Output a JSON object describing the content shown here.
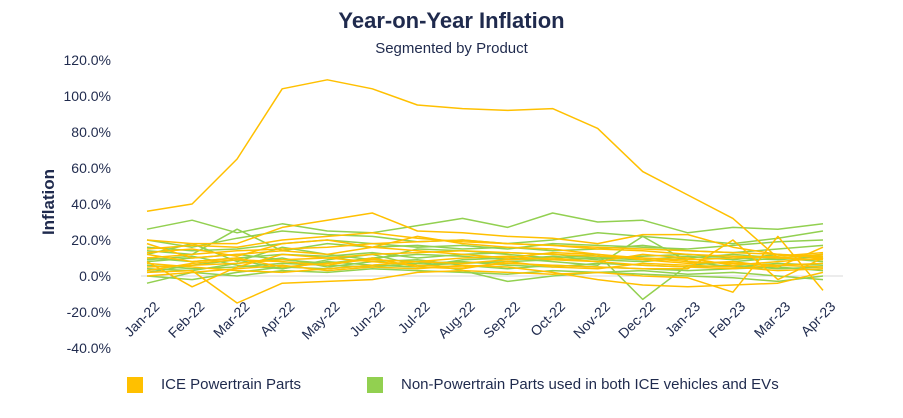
{
  "chart_data": {
    "type": "line",
    "title": "Year-on-Year Inflation",
    "subtitle": "Segmented by Product",
    "ylabel": "Inflation",
    "xlabel": "",
    "ylim": [
      -0.4,
      1.2
    ],
    "y_ticks": [
      "-40.0%",
      "-20.0%",
      "0.0%",
      "20.0%",
      "40.0%",
      "60.0%",
      "80.0%",
      "100.0%",
      "120.0%"
    ],
    "y_tick_values": [
      -0.4,
      -0.2,
      0,
      0.2,
      0.4,
      0.6,
      0.8,
      1.0,
      1.2
    ],
    "categories": [
      "Jan-22",
      "Feb-22",
      "Mar-22",
      "Apr-22",
      "May-22",
      "Jun-22",
      "Jul-22",
      "Aug-22",
      "Sep-22",
      "Oct-22",
      "Nov-22",
      "Dec-22",
      "Jan-23",
      "Feb-23",
      "Mar-23",
      "Apr-23"
    ],
    "grid": false,
    "legend_position": "bottom",
    "groups": [
      {
        "name": "ICE Powertrain Parts",
        "color": "#FFC000"
      },
      {
        "name": "Non-Powertrain Parts used in both ICE vehicles and EVs",
        "color": "#92D050"
      }
    ],
    "series": [
      {
        "group": 0,
        "values": [
          0.36,
          0.4,
          0.65,
          1.04,
          1.09,
          1.04,
          0.95,
          0.93,
          0.92,
          0.93,
          0.82,
          0.58,
          0.45,
          0.32,
          0.1,
          0.12
        ]
      },
      {
        "group": 0,
        "values": [
          0.2,
          0.18,
          0.18,
          0.27,
          0.31,
          0.35,
          0.25,
          0.24,
          0.22,
          0.21,
          0.18,
          0.23,
          0.23,
          0.16,
          0.12,
          0.1
        ]
      },
      {
        "group": 0,
        "values": [
          0.08,
          -0.06,
          0.05,
          0.12,
          0.1,
          0.08,
          0.06,
          0.05,
          0.07,
          0.06,
          0.05,
          0.04,
          0.04,
          0.2,
          -0.02,
          0.1
        ]
      },
      {
        "group": 0,
        "values": [
          0.02,
          0.03,
          -0.15,
          -0.04,
          -0.03,
          -0.02,
          0.02,
          0.03,
          0.02,
          0.01,
          0.02,
          0.0,
          -0.01,
          -0.09,
          0.22,
          -0.08
        ]
      },
      {
        "group": 0,
        "values": [
          0.15,
          0.17,
          0.16,
          0.2,
          0.22,
          0.24,
          0.21,
          0.19,
          0.18,
          0.17,
          0.16,
          0.15,
          0.14,
          0.13,
          0.12,
          0.11
        ]
      },
      {
        "group": 0,
        "values": [
          0.1,
          0.12,
          0.14,
          0.15,
          0.16,
          0.18,
          0.19,
          0.2,
          0.18,
          0.17,
          0.15,
          0.14,
          0.12,
          0.11,
          0.1,
          0.09
        ]
      },
      {
        "group": 0,
        "values": [
          0.05,
          0.06,
          0.07,
          0.09,
          0.1,
          0.12,
          0.13,
          0.14,
          0.13,
          0.12,
          0.11,
          0.1,
          0.08,
          0.07,
          0.06,
          0.05
        ]
      },
      {
        "group": 0,
        "values": [
          0.12,
          0.08,
          0.1,
          0.05,
          0.07,
          0.09,
          0.08,
          0.1,
          0.11,
          0.09,
          0.08,
          0.12,
          0.1,
          0.06,
          0.08,
          0.1
        ]
      },
      {
        "group": 0,
        "values": [
          0.18,
          0.1,
          0.12,
          0.14,
          0.12,
          0.16,
          0.14,
          0.12,
          0.1,
          0.13,
          0.12,
          0.09,
          0.07,
          0.08,
          0.05,
          0.16
        ]
      },
      {
        "group": 0,
        "values": [
          0.0,
          0.02,
          0.04,
          0.06,
          0.03,
          0.05,
          0.04,
          0.06,
          0.05,
          0.02,
          -0.02,
          -0.05,
          -0.06,
          -0.05,
          -0.04,
          0.02
        ]
      },
      {
        "group": 0,
        "values": [
          0.07,
          0.05,
          0.03,
          0.02,
          0.04,
          0.06,
          0.08,
          0.07,
          0.09,
          0.1,
          0.08,
          0.06,
          0.05,
          0.04,
          0.06,
          0.07
        ]
      },
      {
        "group": 0,
        "values": [
          0.13,
          0.15,
          0.11,
          0.18,
          0.2,
          0.16,
          0.22,
          0.18,
          0.16,
          0.15,
          0.12,
          0.1,
          0.09,
          0.1,
          0.11,
          0.13
        ]
      },
      {
        "group": 0,
        "values": [
          0.03,
          0.07,
          0.09,
          0.08,
          0.06,
          0.1,
          0.05,
          0.04,
          0.08,
          0.05,
          0.04,
          0.07,
          0.06,
          0.05,
          0.03,
          0.04
        ]
      },
      {
        "group": 1,
        "values": [
          0.26,
          0.31,
          0.24,
          0.29,
          0.25,
          0.24,
          0.28,
          0.32,
          0.27,
          0.35,
          0.3,
          0.31,
          0.24,
          0.27,
          0.26,
          0.29
        ]
      },
      {
        "group": 1,
        "values": [
          0.2,
          0.16,
          0.21,
          0.25,
          0.23,
          0.22,
          0.19,
          0.2,
          0.18,
          0.2,
          0.24,
          0.22,
          0.2,
          0.18,
          0.21,
          0.25
        ]
      },
      {
        "group": 1,
        "values": [
          0.14,
          0.12,
          0.26,
          0.14,
          0.18,
          0.16,
          0.17,
          0.15,
          0.16,
          0.14,
          0.15,
          0.17,
          0.14,
          0.13,
          0.15,
          0.17
        ]
      },
      {
        "group": 1,
        "values": [
          0.1,
          0.08,
          0.1,
          0.12,
          0.11,
          0.13,
          0.1,
          0.12,
          0.13,
          0.12,
          0.1,
          0.11,
          0.12,
          0.1,
          0.09,
          0.11
        ]
      },
      {
        "group": 1,
        "values": [
          0.06,
          0.04,
          0.05,
          0.07,
          0.06,
          0.05,
          0.07,
          0.08,
          0.06,
          0.05,
          0.07,
          0.06,
          0.05,
          0.06,
          0.04,
          0.05
        ]
      },
      {
        "group": 1,
        "values": [
          -0.04,
          0.02,
          0.0,
          0.03,
          0.02,
          0.04,
          0.03,
          0.02,
          0.01,
          0.03,
          0.02,
          0.01,
          0.0,
          -0.01,
          -0.03,
          0.0
        ]
      },
      {
        "group": 1,
        "values": [
          0.12,
          0.18,
          0.08,
          0.16,
          0.12,
          0.09,
          0.15,
          0.14,
          0.12,
          0.1,
          0.12,
          -0.13,
          0.06,
          0.08,
          0.1,
          0.12
        ]
      },
      {
        "group": 1,
        "values": [
          0.02,
          0.06,
          0.09,
          0.04,
          0.08,
          0.06,
          0.05,
          0.09,
          0.1,
          0.08,
          0.06,
          0.22,
          0.08,
          0.05,
          0.07,
          0.06
        ]
      },
      {
        "group": 1,
        "values": [
          0.08,
          0.1,
          0.12,
          0.09,
          0.07,
          0.1,
          0.12,
          0.11,
          0.09,
          0.11,
          0.09,
          0.08,
          0.1,
          0.12,
          0.1,
          0.08
        ]
      },
      {
        "group": 1,
        "values": [
          0.04,
          0.03,
          0.07,
          0.1,
          0.05,
          0.08,
          0.09,
          0.06,
          0.04,
          0.06,
          0.05,
          0.04,
          0.03,
          0.04,
          0.05,
          0.03
        ]
      },
      {
        "group": 1,
        "values": [
          0.16,
          0.14,
          0.15,
          0.18,
          0.2,
          0.18,
          0.16,
          0.17,
          0.15,
          0.18,
          0.17,
          0.16,
          0.15,
          0.17,
          0.19,
          0.2
        ]
      },
      {
        "group": 1,
        "values": [
          0.0,
          -0.02,
          0.02,
          0.05,
          0.04,
          0.06,
          0.08,
          0.03,
          -0.03,
          0.0,
          0.02,
          0.03,
          0.01,
          0.02,
          0.0,
          -0.02
        ]
      },
      {
        "group": 1,
        "values": [
          0.09,
          0.11,
          0.06,
          0.04,
          0.09,
          0.12,
          0.06,
          0.07,
          0.08,
          0.09,
          0.1,
          0.09,
          0.11,
          0.09,
          0.12,
          0.1
        ]
      }
    ]
  }
}
